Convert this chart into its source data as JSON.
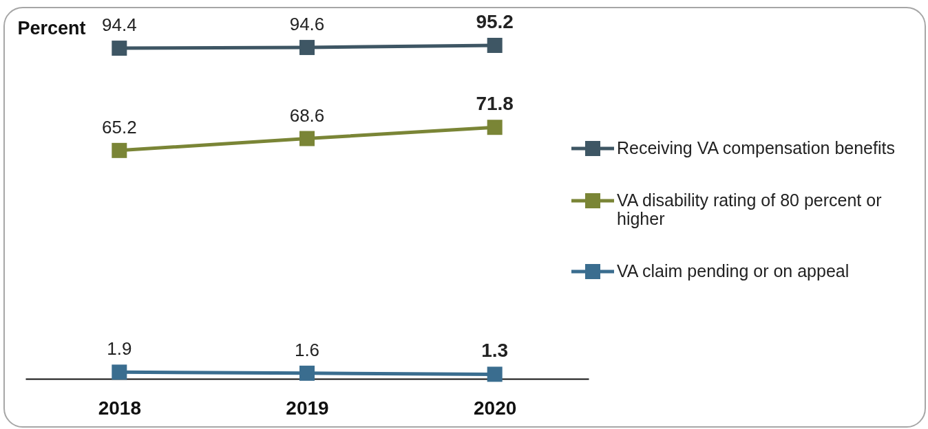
{
  "chart_data": {
    "type": "line",
    "ylabel": "Percent",
    "categories": [
      "2018",
      "2019",
      "2020"
    ],
    "series": [
      {
        "name": "Receiving VA compensation benefits",
        "color": "#3e5664",
        "values": [
          94.4,
          94.6,
          95.2
        ]
      },
      {
        "name": "VA disability rating of 80 percent or higher",
        "color": "#7a8536",
        "values": [
          65.2,
          68.6,
          71.8
        ]
      },
      {
        "name": "VA claim pending or on appeal",
        "color": "#3a6d8f",
        "values": [
          1.9,
          1.6,
          1.3
        ]
      }
    ],
    "data_labels": true,
    "marker": "square",
    "line_style": "solid",
    "legend": "right",
    "tick_labels": "x"
  }
}
